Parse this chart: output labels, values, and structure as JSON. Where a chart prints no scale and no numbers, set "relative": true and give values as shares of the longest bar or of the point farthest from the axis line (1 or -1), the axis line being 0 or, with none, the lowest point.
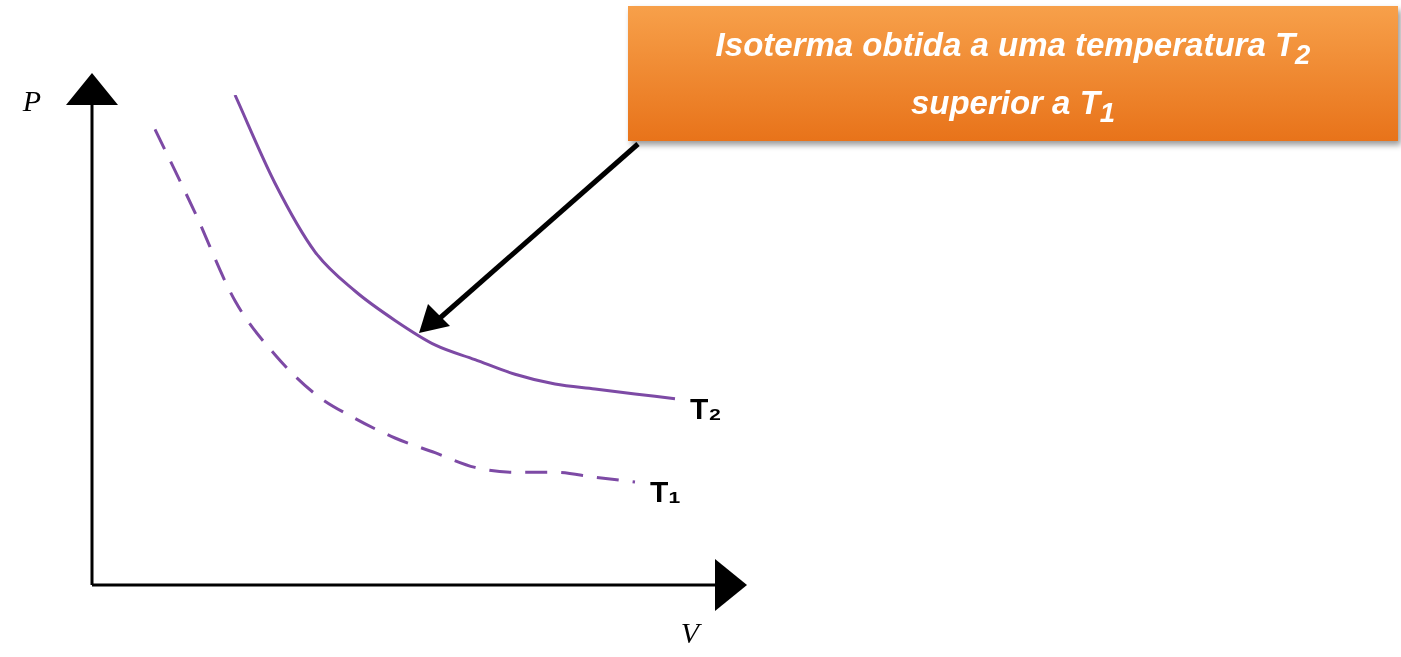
{
  "chart_data": {
    "type": "line",
    "relative": true,
    "xlabel": "V",
    "ylabel": "P",
    "categories": [
      null,
      null,
      null,
      null,
      null,
      null,
      null,
      null,
      null,
      null,
      null,
      null,
      null,
      null
    ],
    "series": [
      {
        "name": "T₂",
        "color": "#7d4aa5",
        "line_style": "solid",
        "values": [
          null,
          null,
          1.0,
          0.82,
          0.68,
          0.6,
          0.54,
          0.49,
          0.46,
          0.43,
          0.41,
          0.4,
          0.39,
          0.38
        ]
      },
      {
        "name": "T₁",
        "color": "#7d4aa5",
        "line_style": "dashed",
        "values": [
          0.93,
          0.76,
          0.58,
          0.47,
          0.39,
          0.34,
          0.3,
          0.27,
          0.24,
          0.23,
          0.23,
          0.22,
          0.21,
          null
        ]
      }
    ],
    "annotations": [
      "Isoterma obtida a uma temperatura T$_{2}$ superior a T$_{1}$"
    ]
  }
}
